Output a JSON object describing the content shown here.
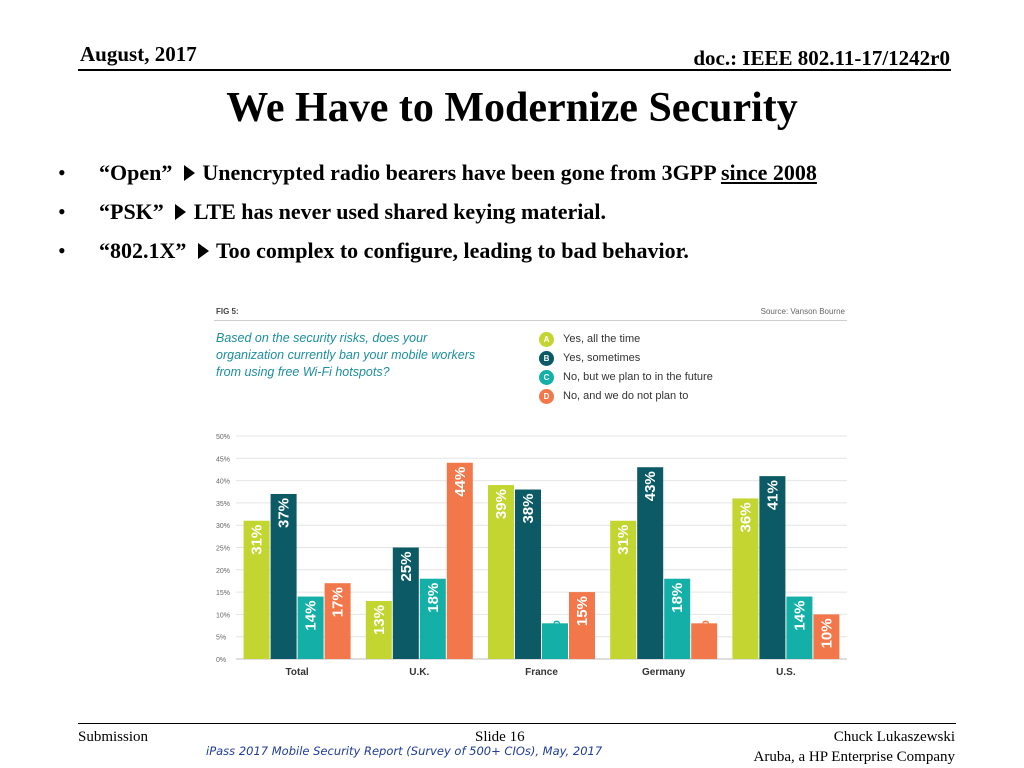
{
  "header": {
    "date": "August, 2017",
    "doc": "doc.: IEEE 802.11-17/1242r0"
  },
  "title": "We Have to Modernize Security",
  "bullets": [
    {
      "bullet": "•",
      "term": "“Open”",
      "text": "Unencrypted radio bearers have been gone from 3GPP",
      "link": "since 2008"
    },
    {
      "bullet": "•",
      "term": "“PSK”",
      "text": "LTE has never used shared keying material.",
      "link": ""
    },
    {
      "bullet": "•",
      "term": "“802.1X”",
      "text": "Too complex to configure, leading to bad behavior.",
      "link": ""
    }
  ],
  "figure": {
    "label": "FIG 5:",
    "source": "Source: Vanson Bourne",
    "question": "Based on the security risks, does your organization currently ban your mobile workers from using free Wi-Fi hotspots?",
    "legend": [
      {
        "badge": "A",
        "label": "Yes, all the time",
        "color": "#c3d530"
      },
      {
        "badge": "B",
        "label": "Yes, sometimes",
        "color": "#0b5a66"
      },
      {
        "badge": "C",
        "label": "No, but we plan to in the future",
        "color": "#14b0a8"
      },
      {
        "badge": "D",
        "label": "No, and we do not plan to",
        "color": "#f2784b"
      }
    ]
  },
  "chart_data": {
    "type": "bar",
    "categories": [
      "Total",
      "U.K.",
      "France",
      "Germany",
      "U.S."
    ],
    "series": [
      {
        "name": "Yes, all the time",
        "color": "#c3d530",
        "values": [
          31,
          13,
          39,
          31,
          36
        ]
      },
      {
        "name": "Yes, sometimes",
        "color": "#0b5a66",
        "values": [
          37,
          25,
          38,
          43,
          41
        ]
      },
      {
        "name": "No, but we plan to in the future",
        "color": "#14b0a8",
        "values": [
          14,
          18,
          8,
          18,
          14
        ]
      },
      {
        "name": "No, and we do not plan to",
        "color": "#f2784b",
        "values": [
          17,
          44,
          15,
          8,
          10
        ]
      }
    ],
    "data_labels": [
      [
        "31%",
        "13%",
        "39%",
        "31%",
        "36%"
      ],
      [
        "37%",
        "25%",
        "38%",
        "43%",
        "41%"
      ],
      [
        "14%",
        "18%",
        "8%",
        "18%",
        "14%"
      ],
      [
        "17%",
        "44%",
        "15%",
        "8%",
        "10%"
      ]
    ],
    "yticks": [
      "0%",
      "5%",
      "10%",
      "15%",
      "20%",
      "25%",
      "30%",
      "35%",
      "40%",
      "45%",
      "50%"
    ],
    "ylim": [
      0,
      50
    ],
    "grid": true,
    "legend_position": "top-right"
  },
  "footer": {
    "submission": "Submission",
    "slide": "Slide 16",
    "source_note": "iPass 2017 Mobile Security Report (Survey of 500+ CIOs), May, 2017",
    "author": "Chuck Lukaszewski",
    "company": "Aruba, a HP Enterprise Company"
  }
}
